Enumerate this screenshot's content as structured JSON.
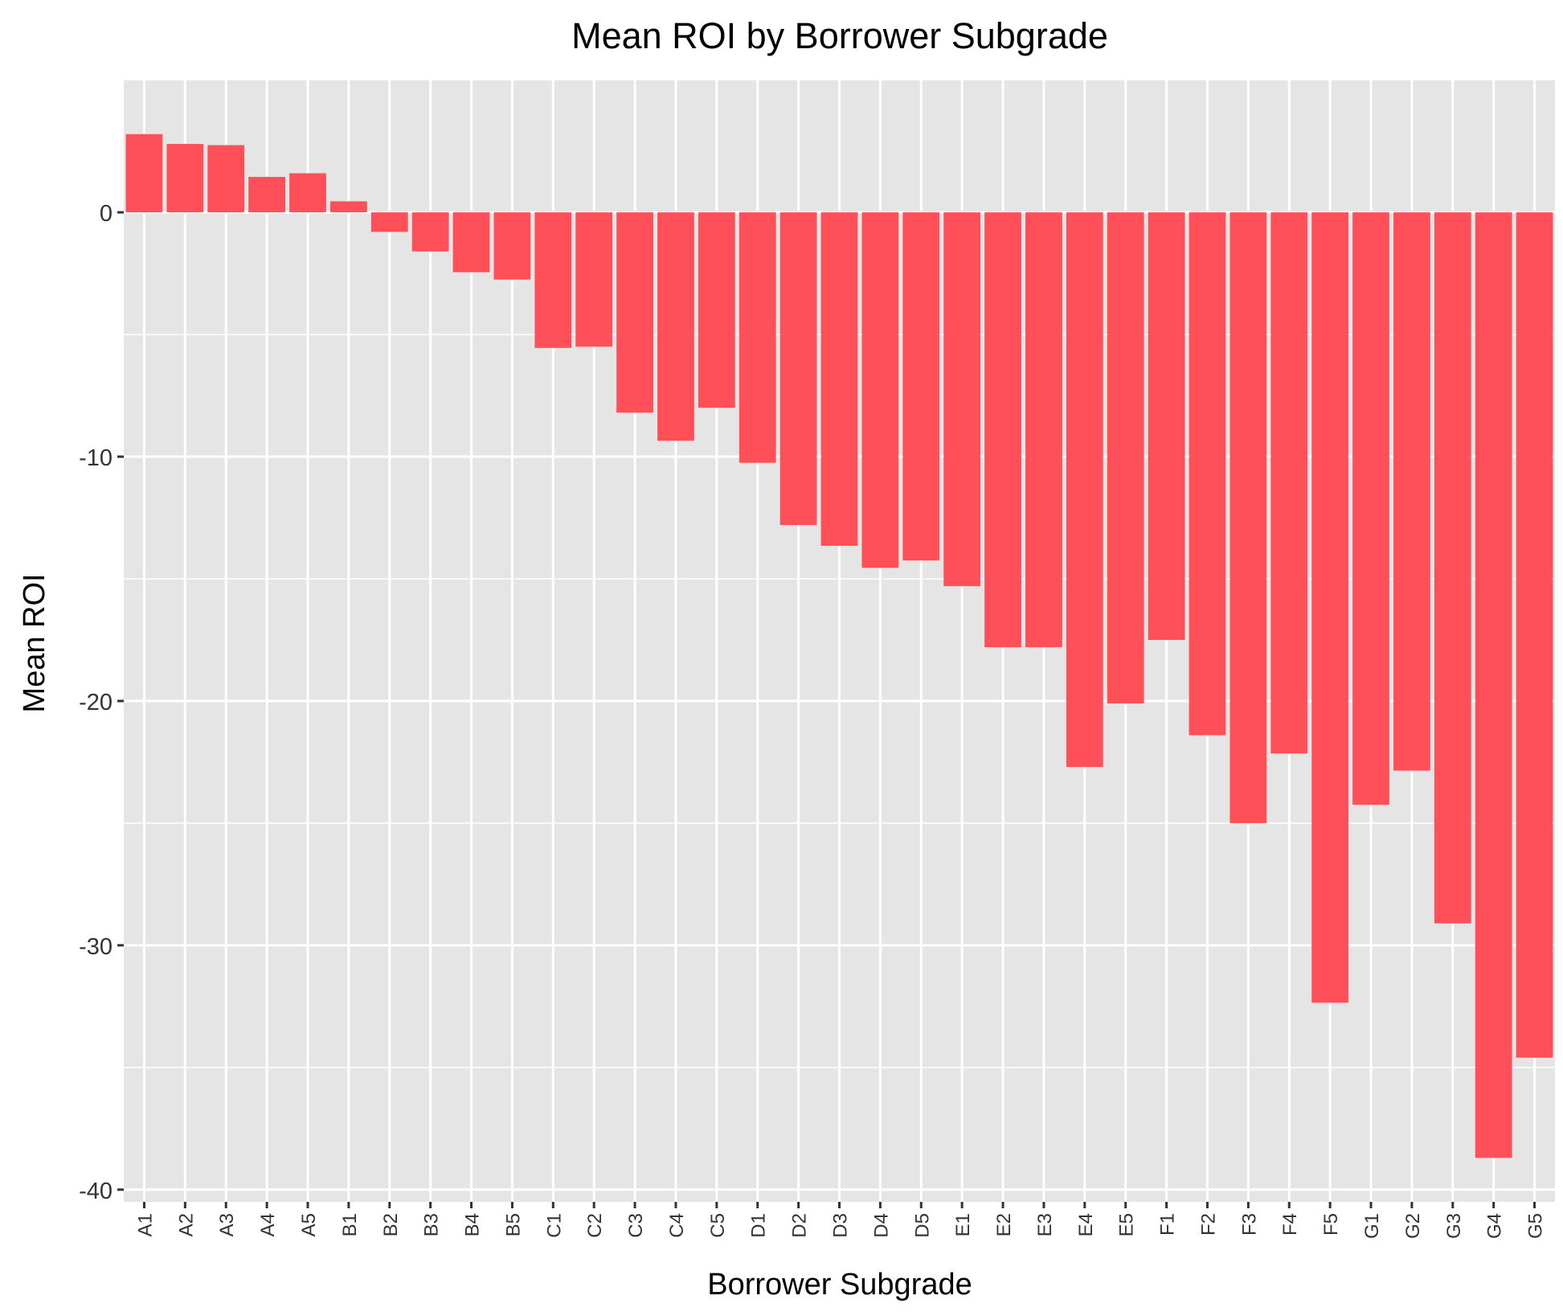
{
  "chart_data": {
    "type": "bar",
    "title": "Mean ROI by Borrower Subgrade",
    "xlabel": "Borrower Subgrade",
    "ylabel": "Mean ROI",
    "categories": [
      "A1",
      "A2",
      "A3",
      "A4",
      "A5",
      "B1",
      "B2",
      "B3",
      "B4",
      "B5",
      "C1",
      "C2",
      "C3",
      "C4",
      "C5",
      "D1",
      "D2",
      "D3",
      "D4",
      "D5",
      "E1",
      "E2",
      "E3",
      "E4",
      "E5",
      "F1",
      "F2",
      "F3",
      "F4",
      "F5",
      "G1",
      "G2",
      "G3",
      "G4",
      "G5"
    ],
    "values": [
      3.2,
      2.8,
      2.75,
      1.45,
      1.6,
      0.45,
      -0.8,
      -1.6,
      -2.45,
      -2.75,
      -5.55,
      -5.5,
      -8.2,
      -9.35,
      -8.0,
      -10.25,
      -12.8,
      -13.65,
      -14.55,
      -14.25,
      -15.3,
      -17.8,
      -17.8,
      -22.7,
      -20.1,
      -17.5,
      -21.4,
      -25.0,
      -22.15,
      -32.35,
      -24.25,
      -22.85,
      -29.1,
      -38.7,
      -34.6
    ],
    "yticks": [
      0,
      -10,
      -20,
      -30,
      -40
    ],
    "ylim": [
      -40.5,
      5.4
    ],
    "grid": true,
    "bar_color": "#FF4F59",
    "panel_color": "#E5E5E5",
    "gridline_color": "#FFFFFF"
  }
}
